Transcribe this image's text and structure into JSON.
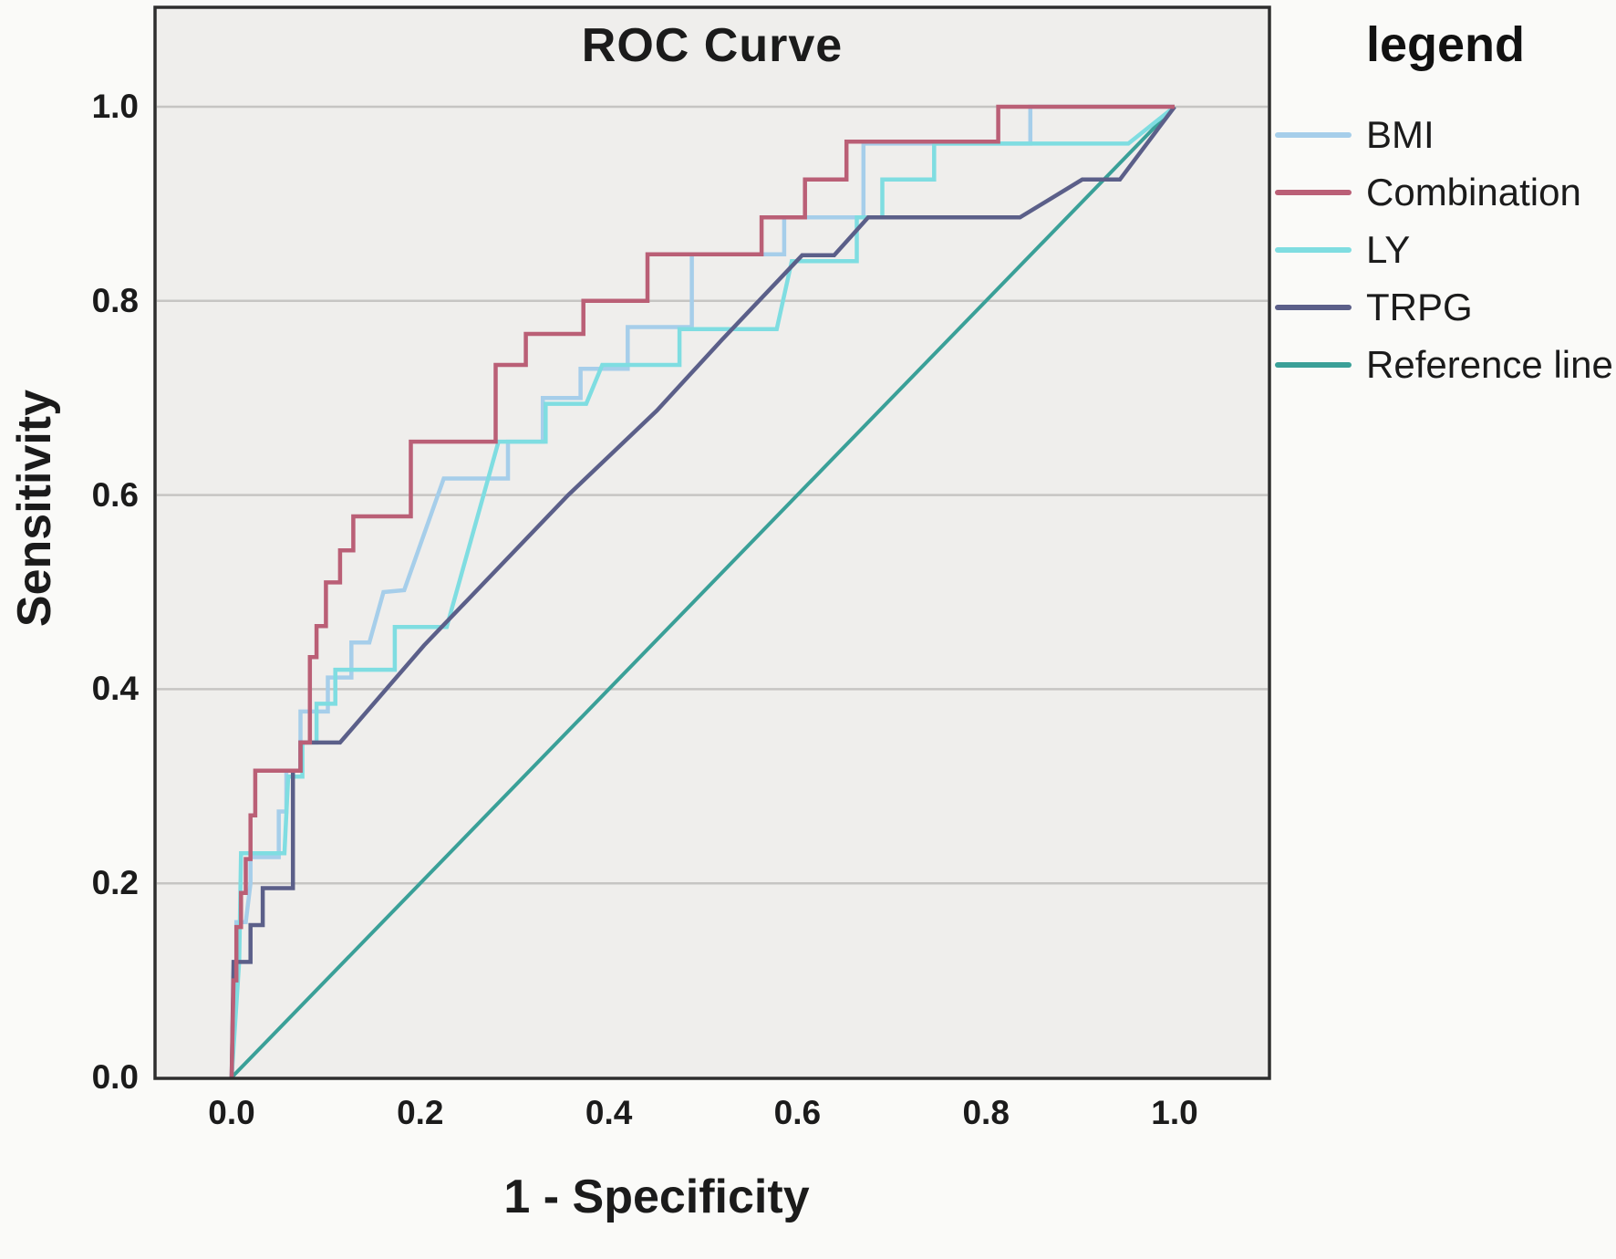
{
  "title": "ROC Curve",
  "axes": {
    "xlabel": "1 - Specificity",
    "ylabel": "Sensitivity",
    "x_tick_labels": [
      "0.0",
      "0.2",
      "0.4",
      "0.6",
      "0.8",
      "1.0"
    ],
    "y_tick_labels": [
      "0.0",
      "0.2",
      "0.4",
      "0.6",
      "0.8",
      "1.0"
    ]
  },
  "legend": {
    "title": "legend",
    "items": [
      "BMI",
      "Combination",
      "LY",
      "TRPG",
      "Reference line"
    ]
  },
  "colors": {
    "background": "#FAFAF8",
    "panel": "#EFEEEC",
    "grid": "#C6C5C3",
    "frame": "#2E2E2E",
    "text": "#1b1b1b"
  },
  "chart_data": {
    "type": "line",
    "subtype": "roc-step-curves",
    "title": "ROC Curve",
    "xlabel": "1 - Specificity",
    "ylabel": "Sensitivity",
    "xlim": [
      0,
      1
    ],
    "ylim": [
      0,
      1
    ],
    "grid": "horizontal",
    "legend_position": "right",
    "series": [
      {
        "name": "Reference line",
        "color": "#3AA098",
        "points": [
          [
            0,
            0
          ],
          [
            1,
            1
          ]
        ]
      },
      {
        "name": "BMI",
        "color": "#A6CEEA",
        "points": [
          [
            0,
            0
          ],
          [
            0.005,
            0.12
          ],
          [
            0.005,
            0.16
          ],
          [
            0.015,
            0.16
          ],
          [
            0.02,
            0.2
          ],
          [
            0.02,
            0.227
          ],
          [
            0.05,
            0.227
          ],
          [
            0.05,
            0.274
          ],
          [
            0.058,
            0.274
          ],
          [
            0.058,
            0.316
          ],
          [
            0.073,
            0.316
          ],
          [
            0.073,
            0.377
          ],
          [
            0.102,
            0.377
          ],
          [
            0.102,
            0.412
          ],
          [
            0.127,
            0.412
          ],
          [
            0.127,
            0.448
          ],
          [
            0.146,
            0.448
          ],
          [
            0.161,
            0.5
          ],
          [
            0.183,
            0.502
          ],
          [
            0.225,
            0.617
          ],
          [
            0.293,
            0.617
          ],
          [
            0.293,
            0.655
          ],
          [
            0.33,
            0.655
          ],
          [
            0.33,
            0.7
          ],
          [
            0.37,
            0.7
          ],
          [
            0.37,
            0.73
          ],
          [
            0.42,
            0.73
          ],
          [
            0.42,
            0.773
          ],
          [
            0.488,
            0.773
          ],
          [
            0.488,
            0.848
          ],
          [
            0.586,
            0.848
          ],
          [
            0.586,
            0.886
          ],
          [
            0.67,
            0.886
          ],
          [
            0.67,
            0.962
          ],
          [
            0.847,
            0.962
          ],
          [
            0.847,
            1
          ],
          [
            1,
            1
          ]
        ]
      },
      {
        "name": "LY",
        "color": "#7FDDE1",
        "points": [
          [
            0,
            0
          ],
          [
            0.008,
            0.12
          ],
          [
            0.01,
            0.231
          ],
          [
            0.056,
            0.231
          ],
          [
            0.06,
            0.31
          ],
          [
            0.075,
            0.31
          ],
          [
            0.075,
            0.345
          ],
          [
            0.09,
            0.345
          ],
          [
            0.09,
            0.385
          ],
          [
            0.11,
            0.385
          ],
          [
            0.11,
            0.42
          ],
          [
            0.173,
            0.42
          ],
          [
            0.173,
            0.464
          ],
          [
            0.228,
            0.464
          ],
          [
            0.283,
            0.655
          ],
          [
            0.333,
            0.655
          ],
          [
            0.333,
            0.694
          ],
          [
            0.376,
            0.694
          ],
          [
            0.393,
            0.734
          ],
          [
            0.475,
            0.734
          ],
          [
            0.475,
            0.771
          ],
          [
            0.578,
            0.771
          ],
          [
            0.594,
            0.841
          ],
          [
            0.663,
            0.841
          ],
          [
            0.663,
            0.886
          ],
          [
            0.69,
            0.886
          ],
          [
            0.69,
            0.925
          ],
          [
            0.745,
            0.925
          ],
          [
            0.745,
            0.962
          ],
          [
            0.951,
            0.962
          ],
          [
            1,
            1
          ]
        ]
      },
      {
        "name": "TRPG",
        "color": "#5B5F89",
        "points": [
          [
            0,
            0
          ],
          [
            0.002,
            0.119
          ],
          [
            0.02,
            0.119
          ],
          [
            0.02,
            0.157
          ],
          [
            0.033,
            0.157
          ],
          [
            0.033,
            0.195
          ],
          [
            0.065,
            0.195
          ],
          [
            0.065,
            0.316
          ],
          [
            0.073,
            0.316
          ],
          [
            0.073,
            0.345
          ],
          [
            0.115,
            0.345
          ],
          [
            0.204,
            0.445
          ],
          [
            0.357,
            0.6
          ],
          [
            0.451,
            0.687
          ],
          [
            0.52,
            0.76
          ],
          [
            0.605,
            0.847
          ],
          [
            0.639,
            0.847
          ],
          [
            0.675,
            0.886
          ],
          [
            0.836,
            0.886
          ],
          [
            0.902,
            0.925
          ],
          [
            0.942,
            0.925
          ],
          [
            1,
            1
          ]
        ]
      },
      {
        "name": "Combination",
        "color": "#BA5F76",
        "points": [
          [
            0,
            0
          ],
          [
            0.002,
            0.1
          ],
          [
            0.005,
            0.1
          ],
          [
            0.005,
            0.155
          ],
          [
            0.01,
            0.155
          ],
          [
            0.01,
            0.19
          ],
          [
            0.015,
            0.19
          ],
          [
            0.015,
            0.225
          ],
          [
            0.02,
            0.225
          ],
          [
            0.02,
            0.27
          ],
          [
            0.025,
            0.27
          ],
          [
            0.025,
            0.316
          ],
          [
            0.073,
            0.316
          ],
          [
            0.073,
            0.345
          ],
          [
            0.083,
            0.345
          ],
          [
            0.083,
            0.433
          ],
          [
            0.09,
            0.433
          ],
          [
            0.09,
            0.465
          ],
          [
            0.1,
            0.465
          ],
          [
            0.1,
            0.51
          ],
          [
            0.115,
            0.51
          ],
          [
            0.115,
            0.543
          ],
          [
            0.129,
            0.543
          ],
          [
            0.129,
            0.578
          ],
          [
            0.19,
            0.578
          ],
          [
            0.19,
            0.655
          ],
          [
            0.28,
            0.655
          ],
          [
            0.28,
            0.734
          ],
          [
            0.312,
            0.734
          ],
          [
            0.312,
            0.766
          ],
          [
            0.373,
            0.766
          ],
          [
            0.373,
            0.8
          ],
          [
            0.441,
            0.8
          ],
          [
            0.441,
            0.848
          ],
          [
            0.562,
            0.848
          ],
          [
            0.562,
            0.886
          ],
          [
            0.608,
            0.886
          ],
          [
            0.608,
            0.925
          ],
          [
            0.652,
            0.925
          ],
          [
            0.652,
            0.964
          ],
          [
            0.813,
            0.964
          ],
          [
            0.813,
            1
          ],
          [
            1,
            1
          ]
        ]
      }
    ]
  }
}
